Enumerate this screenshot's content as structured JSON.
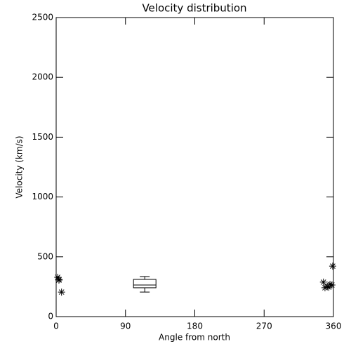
{
  "chart_data": {
    "type": "scatter",
    "title": "Velocity distribution",
    "x_label": "Angle from north",
    "y_label": "Velocity (km/s)",
    "xlim": [
      0,
      360
    ],
    "ylim": [
      0,
      2500
    ],
    "xticks": [
      0,
      90,
      180,
      270,
      360
    ],
    "yticks": [
      0,
      500,
      1000,
      1500,
      2000,
      2500
    ],
    "color": "#000000",
    "x": [
      2,
      3.6,
      3.8,
      7,
      347,
      349,
      352,
      354,
      355.5,
      358,
      359
    ],
    "values": [
      329,
      305,
      310,
      205,
      288,
      241,
      252,
      246,
      270,
      264,
      422
    ],
    "box": {
      "position": 115,
      "whisker_low": 205,
      "q1": 241,
      "median": 264,
      "q3": 311,
      "whisker_high": 335
    }
  }
}
